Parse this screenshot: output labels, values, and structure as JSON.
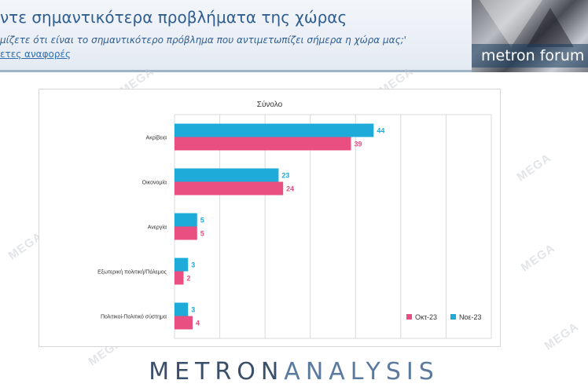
{
  "header": {
    "title": "ντε σημαντικότερα προβλήματα της χώρας",
    "subtitle": "μίζετε ότι είναι το σημαντικότερο πρόβλημα που αντιμετωπίζει σήμερα η χώρα μας;'",
    "link": "ετες αναφορές"
  },
  "logo": {
    "text": "metron forum"
  },
  "watermark": "MEGA",
  "footer": {
    "brand_bold": "METRON",
    "brand_light": "ANALYSIS"
  },
  "colors": {
    "okt": "#e94f80",
    "noe": "#1eabd9"
  },
  "chart_data": {
    "type": "bar",
    "orientation": "horizontal",
    "title": "Σύνολο",
    "categories": [
      "Ακρίβεια",
      "Οικονομία",
      "Ανεργία",
      "Εξωτερική πολιτική/Πόλεμος",
      "Πολιτικοί-Πολιτικό σύστημα"
    ],
    "series": [
      {
        "name": "Νοε-23",
        "values": [
          44,
          23,
          5,
          3,
          3
        ],
        "color": "#1eabd9"
      },
      {
        "name": "Οκτ-23",
        "values": [
          39,
          24,
          5,
          2,
          4
        ],
        "color": "#e94f80"
      }
    ],
    "xlim": [
      0,
      70
    ],
    "grid": true,
    "legend": "bottom-right"
  }
}
